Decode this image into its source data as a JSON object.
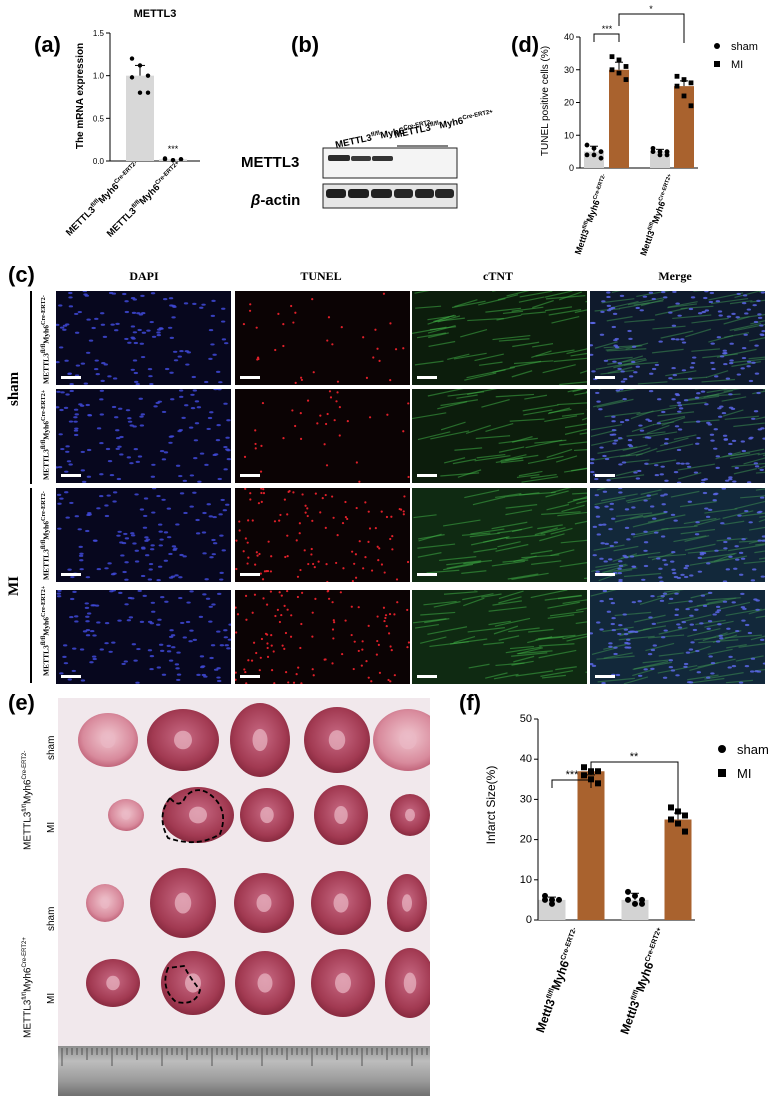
{
  "panel_labels": {
    "a": "(a)",
    "b": "(b)",
    "c": "(c)",
    "d": "(d)",
    "e": "(e)",
    "f": "(f)"
  },
  "genotypes": {
    "ctrl_base": "METTL3",
    "ctrl_sup": "fl/fl",
    "ctrl_mid": "Myh6",
    "ctrl_cre": "Cre-ERT2-",
    "ko_base": "METTL3",
    "ko_sup": "fl/fl",
    "ko_mid": "Myh6",
    "ko_cre": "Cre-ERT2+",
    "ctrl_lower_base": "Mettl3",
    "ko_lower_base": "Mettl3"
  },
  "panel_a": {
    "chart_data": {
      "type": "bar",
      "title": "METTL3",
      "ylabel": "The mRNA expression",
      "categories": [
        "METTL3fl/flMyh6Cre-ERT2-",
        "METTL3fl/flMyh6Cre-ERT2+"
      ],
      "values": [
        1.0,
        0.02
      ],
      "points": [
        [
          1.2,
          1.12,
          1.0,
          0.98,
          0.8,
          0.8
        ],
        [
          0.02,
          0.01,
          0.02,
          0.03,
          0.01,
          0.02
        ]
      ],
      "ylim": [
        0,
        1.5
      ],
      "yticks": [
        "0.0",
        "0.5",
        "1.0",
        "1.5"
      ],
      "annotation": "***"
    }
  },
  "panel_b": {
    "protein_1": "METTL3",
    "protein_2": "β-actin",
    "beta_symbol": "β",
    "protein_2_suffix": "-actin"
  },
  "panel_d": {
    "chart_data": {
      "type": "bar",
      "ylabel": "TUNEL positive cells (%)",
      "ylim": [
        0,
        40
      ],
      "yticks": [
        "0",
        "10",
        "20",
        "30",
        "40"
      ],
      "series": [
        {
          "name": "sham",
          "values": [
            5,
            5
          ],
          "points": [
            [
              7,
              6,
              5,
              4,
              4,
              3
            ],
            [
              6,
              5,
              5,
              5,
              4,
              4
            ]
          ]
        },
        {
          "name": "MI",
          "values": [
            30,
            25
          ],
          "points": [
            [
              34,
              33,
              31,
              30,
              29,
              27
            ],
            [
              28,
              27,
              26,
              25,
              22,
              19
            ]
          ]
        }
      ],
      "significance": [
        "***",
        "*"
      ],
      "legend": "top-right"
    }
  },
  "panel_c": {
    "columns": [
      "DAPI",
      "TUNEL",
      "cTNT",
      "Merge"
    ],
    "groups": [
      "sham",
      "MI"
    ]
  },
  "panel_e": {
    "rows": [
      "sham",
      "MI",
      "sham",
      "MI"
    ]
  },
  "panel_f": {
    "chart_data": {
      "type": "bar",
      "ylabel": "Infarct Size(%)",
      "ylim": [
        0,
        50
      ],
      "yticks": [
        "0",
        "10",
        "20",
        "30",
        "40",
        "50"
      ],
      "series": [
        {
          "name": "sham",
          "values": [
            5,
            5
          ],
          "points": [
            [
              6,
              5,
              5,
              5,
              4
            ],
            [
              7,
              6,
              5,
              5,
              4,
              4
            ]
          ]
        },
        {
          "name": "MI",
          "values": [
            37,
            25
          ],
          "points": [
            [
              38,
              37,
              37,
              36,
              35,
              34
            ],
            [
              28,
              27,
              26,
              25,
              24,
              22
            ]
          ]
        }
      ],
      "significance": [
        "***",
        "**"
      ],
      "legend": "top-right"
    }
  },
  "colors": {
    "mi_bar": "#a9622e",
    "sham_bar": "#d3d3d3",
    "dapi": "#3f49d8",
    "tunel": "#e0202a",
    "ctnt": "#3fae45",
    "heart": "#a83a4e"
  }
}
